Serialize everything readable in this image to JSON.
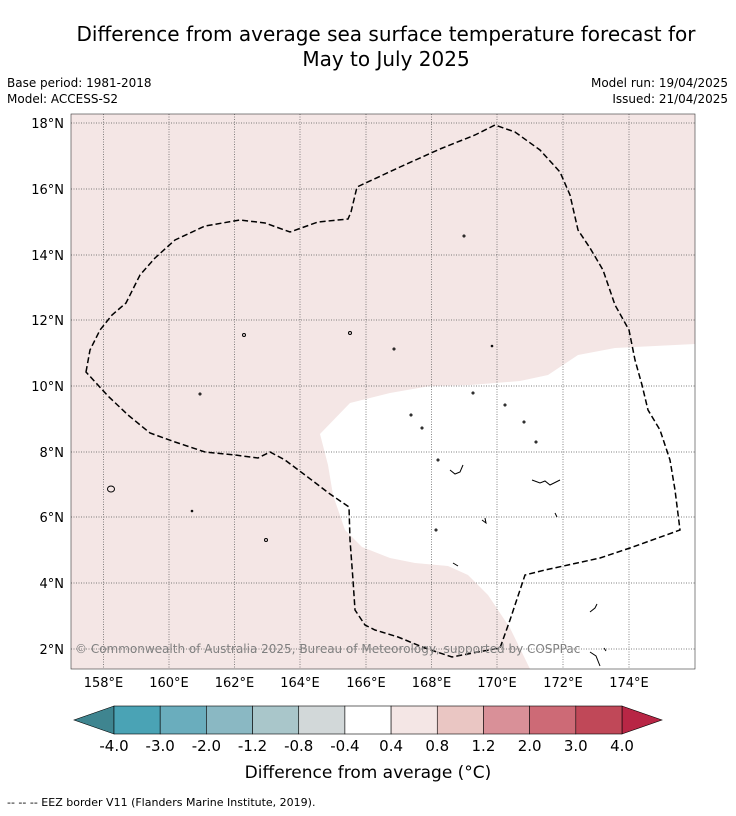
{
  "title_line1": "Difference from average sea surface temperature forecast for",
  "title_line2": "May to July 2025",
  "meta": {
    "base_period": "Base period: 1981-2018",
    "model": "Model: ACCESS-S2",
    "model_run": "Model run: 19/04/2025",
    "issued": "Issued: 21/04/2025"
  },
  "copyright": "© Commonwealth of Australia 2025, Bureau of Meteorology, supported by COSPPac",
  "colorbar": {
    "title": "Difference from average (°C)",
    "tick_labels": [
      "-4.0",
      "-3.0",
      "-2.0",
      "-1.2",
      "-0.8",
      "-0.4",
      "0.4",
      "0.8",
      "1.2",
      "2.0",
      "3.0",
      "4.0"
    ],
    "colors": [
      "#4aa3b5",
      "#6aadbd",
      "#8ab8c3",
      "#a9c6ca",
      "#d2d8d9",
      "#ffffff",
      "#f4e6e5",
      "#eac6c3",
      "#d99098",
      "#cd6a76",
      "#c04858"
    ],
    "extend_low_color": "#3f8590",
    "extend_high_color": "#b82645"
  },
  "map": {
    "lon_labels": [
      "158°E",
      "160°E",
      "162°E",
      "164°E",
      "166°E",
      "168°E",
      "170°E",
      "172°E",
      "174°E"
    ],
    "lat_labels": [
      "18°N",
      "16°N",
      "14°N",
      "12°N",
      "10°N",
      "8°N",
      "6°N",
      "4°N",
      "2°N"
    ],
    "background_color": "#f4e6e5",
    "neutral_color": "#ffffff"
  },
  "legend_note": "--  --  -- EEZ border V11 (Flanders Marine Institute, 2019)."
}
